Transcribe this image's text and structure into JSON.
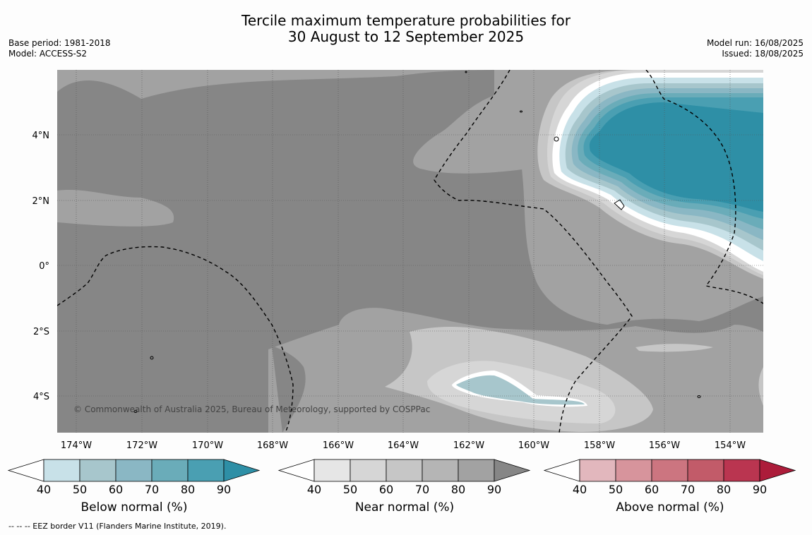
{
  "title_line1": "Tercile maximum temperature probabilities for",
  "title_line2": "30 August to 12 September 2025",
  "base_period": "Base period: 1981-2018",
  "model": "Model: ACCESS-S2",
  "model_run": "Model run: 16/08/2025",
  "issued": "Issued: 18/08/2025",
  "copyright": "© Commonwealth of Australia 2025, Bureau of Meteorology, supported by COSPPac",
  "footer": "--  --  -- EEZ border V11 (Flanders Marine Institute, 2019).",
  "map": {
    "lon_range": [
      -174.6,
      -153.0
    ],
    "lat_range": [
      -5.2,
      5.9
    ],
    "lon_ticks": [
      "174°W",
      "172°W",
      "170°W",
      "168°W",
      "166°W",
      "164°W",
      "162°W",
      "160°W",
      "158°W",
      "156°W",
      "154°W"
    ],
    "lat_ticks": [
      "4°N",
      "2°N",
      "0°",
      "2°S",
      "4°S"
    ],
    "background": "near normal 80-90%"
  },
  "colorbars": [
    {
      "label": "Below normal (%)",
      "ticks": [
        "40",
        "50",
        "60",
        "70",
        "80",
        "90"
      ],
      "colors": [
        "#c8e1e8",
        "#a7c6cc",
        "#8ab7c4",
        "#6aacb9",
        "#4a9fb2",
        "#2e8fa6"
      ]
    },
    {
      "label": "Near normal (%)",
      "ticks": [
        "40",
        "50",
        "60",
        "70",
        "80",
        "90"
      ],
      "colors": [
        "#e6e6e6",
        "#d6d6d6",
        "#c6c6c6",
        "#b5b5b5",
        "#a2a2a2",
        "#868686"
      ]
    },
    {
      "label": "Above normal (%)",
      "ticks": [
        "40",
        "50",
        "60",
        "70",
        "80",
        "90"
      ],
      "colors": [
        "#e2b7bd",
        "#d7949c",
        "#cc7580",
        "#c25b69",
        "#ba3550",
        "#ac1c3a"
      ]
    }
  ]
}
